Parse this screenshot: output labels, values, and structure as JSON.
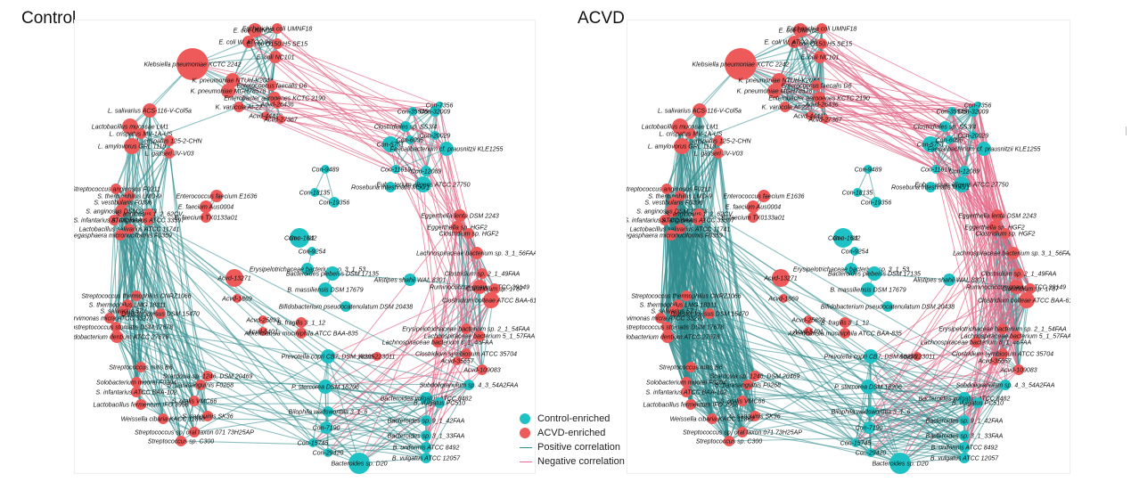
{
  "panels": {
    "left_title": "Control",
    "right_title": "ACVD"
  },
  "legend": {
    "control_label": "Control-enriched",
    "acvd_label": "ACVD-enriched",
    "positive_label": "Positive correlation",
    "negative_label": "Negative correlation"
  },
  "colors": {
    "control": "#1fc2c4",
    "acvd": "#ee5a5a",
    "positive": "#2f8c8e",
    "negative": "#e46b8a"
  },
  "nodes": [
    {
      "id": "n1",
      "label": "E. coli UMN026",
      "group": "acvd",
      "size": 8
    },
    {
      "id": "n2",
      "label": "Escherichia coli UMNF18",
      "group": "acvd",
      "size": 6
    },
    {
      "id": "n3",
      "label": "E. coli W, ATCC 9637",
      "group": "acvd",
      "size": 7
    },
    {
      "id": "n4",
      "label": "E. coli O150:H5 SE15",
      "group": "acvd",
      "size": 6
    },
    {
      "id": "n5",
      "label": "Klebsiella pneumoniae KCTC 2242",
      "group": "acvd",
      "size": 18
    },
    {
      "id": "n6",
      "label": "E. coli NC101",
      "group": "acvd",
      "size": 7
    },
    {
      "id": "n7",
      "label": "K. pneumoniae NTUH-K2044",
      "group": "acvd",
      "size": 8
    },
    {
      "id": "n8",
      "label": "K. pneumoniae MGH78578",
      "group": "acvd",
      "size": 8
    },
    {
      "id": "n9",
      "label": "Enterococcus faecalis D6",
      "group": "acvd",
      "size": 6
    },
    {
      "id": "n10",
      "label": "Enterobacter aerogenes KCTC 2190",
      "group": "acvd",
      "size": 7
    },
    {
      "id": "n11",
      "label": "K. variicola At-22",
      "group": "acvd",
      "size": 6
    },
    {
      "id": "n12",
      "label": "Acvd-26436",
      "group": "acvd",
      "size": 5
    },
    {
      "id": "n13",
      "label": "Acvd-44413",
      "group": "acvd",
      "size": 5
    },
    {
      "id": "n14",
      "label": "Acvd-27367",
      "group": "acvd",
      "size": 5
    },
    {
      "id": "n15",
      "label": "L. salivarius ACS-116-V-Col5a",
      "group": "acvd",
      "size": 8
    },
    {
      "id": "n16",
      "label": "Lactobacillus mucosae LM1",
      "group": "acvd",
      "size": 9
    },
    {
      "id": "n17",
      "label": "L. crispatus MV-1A-US",
      "group": "acvd",
      "size": 6
    },
    {
      "id": "n18",
      "label": "L. crispatus 125-2-CHN",
      "group": "acvd",
      "size": 6
    },
    {
      "id": "n19",
      "label": "L. amylovorus GRL 1118",
      "group": "acvd",
      "size": 9
    },
    {
      "id": "n20",
      "label": "L. gasseri JV-V03",
      "group": "acvd",
      "size": 6
    },
    {
      "id": "n21",
      "label": "Con-35545",
      "group": "control",
      "size": 5
    },
    {
      "id": "n22",
      "label": "Con-32009",
      "group": "control",
      "size": 6
    },
    {
      "id": "n23",
      "label": "Con-7356",
      "group": "control",
      "size": 4
    },
    {
      "id": "n24",
      "label": "Con-5751",
      "group": "control",
      "size": 9
    },
    {
      "id": "n25",
      "label": "Con-6096",
      "group": "control",
      "size": 5
    },
    {
      "id": "n26",
      "label": "Clostridiales sp. SS3/4",
      "group": "control",
      "size": 6
    },
    {
      "id": "n27",
      "label": "Con-20029",
      "group": "control",
      "size": 5
    },
    {
      "id": "n28",
      "label": "Faecalibacterium cf. prausnitzii KLE1255",
      "group": "control",
      "size": 8
    },
    {
      "id": "n29",
      "label": "Con-11619",
      "group": "control",
      "size": 5
    },
    {
      "id": "n30",
      "label": "Con-12089",
      "group": "control",
      "size": 6
    },
    {
      "id": "n31",
      "label": "Eubacterium eligens ATCC 27750",
      "group": "control",
      "size": 9
    },
    {
      "id": "n32",
      "label": "Con-9489",
      "group": "control",
      "size": 5
    },
    {
      "id": "n33",
      "label": "Con-18135",
      "group": "control",
      "size": 5
    },
    {
      "id": "n34",
      "label": "Con-19356",
      "group": "control",
      "size": 6
    },
    {
      "id": "n35",
      "label": "Roseburia intestinalis M50/1",
      "group": "control",
      "size": 6
    },
    {
      "id": "n36",
      "label": "Streptococcus anginosus F0211",
      "group": "acvd",
      "size": 6
    },
    {
      "id": "n37",
      "label": "S. thermophilus LMD-9",
      "group": "acvd",
      "size": 6
    },
    {
      "id": "n38",
      "label": "S. vestibularis F0396",
      "group": "acvd",
      "size": 6
    },
    {
      "id": "n39",
      "label": "S. anginosus DSM 20563",
      "group": "acvd",
      "size": 7
    },
    {
      "id": "n40",
      "label": "S. anginosus 1_2_62CV",
      "group": "acvd",
      "size": 6
    },
    {
      "id": "n41",
      "label": "S. infantarius ATCC BAA-102",
      "group": "acvd",
      "size": 6
    },
    {
      "id": "n42",
      "label": "S. anginosus ATCC 33397",
      "group": "acvd",
      "size": 6
    },
    {
      "id": "n43",
      "label": "Lactobacillus salivarius ATCC 11741",
      "group": "acvd",
      "size": 6
    },
    {
      "id": "n44",
      "label": "Megasphaera micronuciformis F0359",
      "group": "acvd",
      "size": 6
    },
    {
      "id": "n45",
      "label": "Enterococcus faecium E1636",
      "group": "acvd",
      "size": 7
    },
    {
      "id": "n46",
      "label": "E. faecium Aus0004",
      "group": "acvd",
      "size": 7
    },
    {
      "id": "n47",
      "label": "E. faecium TX0133a01",
      "group": "acvd",
      "size": 6
    },
    {
      "id": "n48",
      "label": "Eggerthella lenta DSM 2243",
      "group": "acvd",
      "size": 7
    },
    {
      "id": "n49",
      "label": "Eggerthella sp. HGF2",
      "group": "acvd",
      "size": 7
    },
    {
      "id": "n50",
      "label": "Clostridium sp. HGF2",
      "group": "acvd",
      "size": 6
    },
    {
      "id": "n51",
      "label": "Con-21311",
      "group": "control",
      "size": 11
    },
    {
      "id": "n52",
      "label": "Con-1642",
      "group": "control",
      "size": 5
    },
    {
      "id": "n53",
      "label": "Con-9254",
      "group": "control",
      "size": 5
    },
    {
      "id": "n54",
      "label": "Erysipelotrichaceae bacterium sp. 3_1_53",
      "group": "control",
      "size": 7
    },
    {
      "id": "n55",
      "label": "Bacteroides plebeius DSM 17135",
      "group": "control",
      "size": 8
    },
    {
      "id": "n56",
      "label": "Alistipes shahii WAL 8301",
      "group": "control",
      "size": 7
    },
    {
      "id": "n57",
      "label": "Lachnospiraceae bacterium sp. 3_1_56FAA",
      "group": "acvd",
      "size": 7
    },
    {
      "id": "n58",
      "label": "Clostridium sp. 2_1_49FAA",
      "group": "acvd",
      "size": 6
    },
    {
      "id": "n59",
      "label": "Ruminococcus gnavus ATCC 29149",
      "group": "acvd",
      "size": 8
    },
    {
      "id": "n60",
      "label": "Acvd-13271",
      "group": "acvd",
      "size": 10
    },
    {
      "id": "n61",
      "label": "Acvd-1869",
      "group": "acvd",
      "size": 5
    },
    {
      "id": "n62",
      "label": "B. massiliensis DSM 17679",
      "group": "control",
      "size": 8
    },
    {
      "id": "n63",
      "label": "Bifidobacterium pseudocatenulatum DSM 20438",
      "group": "control",
      "size": 6
    },
    {
      "id": "n64",
      "label": "Clostridium bolteae ATCC BAA-613",
      "group": "acvd",
      "size": 9
    },
    {
      "id": "n65",
      "label": "Clostridium sp. 1787",
      "group": "acvd",
      "size": 6
    },
    {
      "id": "n66",
      "label": "Streptococcus thermophilus CNRZ1066",
      "group": "acvd",
      "size": 6
    },
    {
      "id": "n67",
      "label": "S. thermophilus LMG 18311",
      "group": "acvd",
      "size": 6
    },
    {
      "id": "n68",
      "label": "S. salivarius 57.I",
      "group": "acvd",
      "size": 6
    },
    {
      "id": "n69",
      "label": "Dialister invisus DSM 15470",
      "group": "acvd",
      "size": 6
    },
    {
      "id": "n70",
      "label": "Parvimonas micra ATCC 33270",
      "group": "acvd",
      "size": 6
    },
    {
      "id": "n71",
      "label": "Peptostreptococcus stomatis DSM 17678",
      "group": "acvd",
      "size": 6
    },
    {
      "id": "n72",
      "label": "Bifidobacterium dentium ATCC 27678",
      "group": "acvd",
      "size": 7
    },
    {
      "id": "n73",
      "label": "Acvd-25893",
      "group": "acvd",
      "size": 5
    },
    {
      "id": "n74",
      "label": "B. fragilis 3_1_12",
      "group": "acvd",
      "size": 6
    },
    {
      "id": "n75",
      "label": "Acvd-5401",
      "group": "acvd",
      "size": 5
    },
    {
      "id": "n76",
      "label": "Akkermansia muciniphila ATCC BAA-835",
      "group": "acvd",
      "size": 6
    },
    {
      "id": "n77",
      "label": "Lachnospiraceae bacterium 8_1_46FAA",
      "group": "acvd",
      "size": 6
    },
    {
      "id": "n78",
      "label": "Erysipelotrichaceae bacterium sp. 2_1_54FAA",
      "group": "acvd",
      "size": 6
    },
    {
      "id": "n79",
      "label": "Lachnospiraceae bacterium 5_1_57FAA",
      "group": "acvd",
      "size": 6
    },
    {
      "id": "n80",
      "label": "Clostridium symbiosum ATCC 35704",
      "group": "acvd",
      "size": 6
    },
    {
      "id": "n81",
      "label": "Acvd-223011",
      "group": "acvd",
      "size": 5
    },
    {
      "id": "n82",
      "label": "Acvd-109083",
      "group": "acvd",
      "size": 6
    },
    {
      "id": "n83",
      "label": "Acvd-35657",
      "group": "acvd",
      "size": 5
    },
    {
      "id": "n84",
      "label": "Prevotella copri CB7, DSM 18205",
      "group": "control",
      "size": 8
    },
    {
      "id": "n85",
      "label": "Streptococcus mitis B6",
      "group": "acvd",
      "size": 6
    },
    {
      "id": "n86",
      "label": "Solobacterium moorei F0204",
      "group": "acvd",
      "size": 6
    },
    {
      "id": "n87",
      "label": "Scardovia sp. 1246, DSM 20469",
      "group": "acvd",
      "size": 6
    },
    {
      "id": "n88",
      "label": "S. parasanguinis F0268",
      "group": "acvd",
      "size": 6
    },
    {
      "id": "n89",
      "label": "S. infantarius ATCC BAA-102",
      "group": "acvd",
      "size": 6
    },
    {
      "id": "n90",
      "label": "Lactobacillus fermentum IFO 3956",
      "group": "acvd",
      "size": 6
    },
    {
      "id": "n91",
      "label": "S. oralis VMC66",
      "group": "acvd",
      "size": 6
    },
    {
      "id": "n92",
      "label": "S. sanguinis SK36",
      "group": "acvd",
      "size": 6
    },
    {
      "id": "n93",
      "label": "Weissella cibaria KACC 11862",
      "group": "acvd",
      "size": 6
    },
    {
      "id": "n94",
      "label": "Streptococcus sp. oral taxon 071 73H25AP",
      "group": "acvd",
      "size": 6
    },
    {
      "id": "n95",
      "label": "Streptococcus sp. C300",
      "group": "acvd",
      "size": 6
    },
    {
      "id": "n96",
      "label": "P. stercorea DSM 18206",
      "group": "control",
      "size": 8
    },
    {
      "id": "n97",
      "label": "Bacteroides vulgatus ATCC 8482",
      "group": "control",
      "size": 7
    },
    {
      "id": "n98",
      "label": "Bilophila wadsworthia 3_1_6",
      "group": "control",
      "size": 6
    },
    {
      "id": "n99",
      "label": "B. vulgatus PC510",
      "group": "control",
      "size": 6
    },
    {
      "id": "n100",
      "label": "Subdoligranulum sp. 4_3_54A2FAA",
      "group": "control",
      "size": 6
    },
    {
      "id": "n101",
      "label": "Bacteroides sp. 9_1_42FAA",
      "group": "control",
      "size": 6
    },
    {
      "id": "n102",
      "label": "Bacteroides sp. 3_1_33FAA",
      "group": "control",
      "size": 6
    },
    {
      "id": "n103",
      "label": "Con-7190",
      "group": "control",
      "size": 7
    },
    {
      "id": "n104",
      "label": "Con-15745",
      "group": "control",
      "size": 5
    },
    {
      "id": "n105",
      "label": "Con-29420",
      "group": "control",
      "size": 5
    },
    {
      "id": "n106",
      "label": "B. uniformis ATCC 8492",
      "group": "control",
      "size": 6
    },
    {
      "id": "n107",
      "label": "B. vulgatus ATCC 12057",
      "group": "control",
      "size": 6
    },
    {
      "id": "n108",
      "label": "Bacteroides sp. D20",
      "group": "control",
      "size": 12
    }
  ]
}
